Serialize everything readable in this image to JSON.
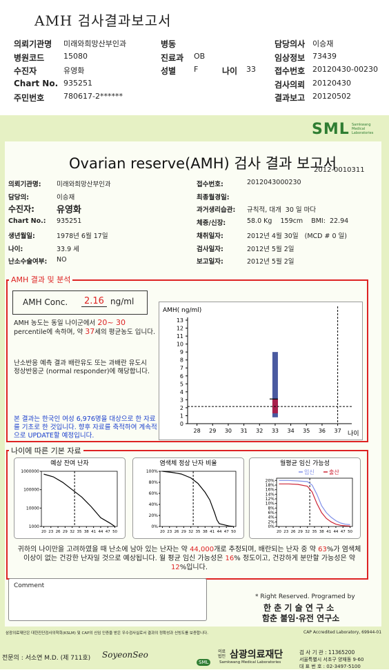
{
  "header": {
    "title": "AMH 검사결과보고서",
    "rows": [
      [
        {
          "label": "의뢰기관명",
          "value": "미래와희망산부인과"
        },
        {
          "label": "병동"
        },
        null,
        {
          "label": "담당의사",
          "value": "이승재"
        }
      ],
      [
        {
          "label": "병원코드",
          "value": "15080"
        },
        {
          "label": "진료과",
          "value": "OB"
        },
        null,
        {
          "label": "임상정보",
          "value": "73439"
        }
      ],
      [
        {
          "label": "수진자",
          "value": "유영화"
        },
        {
          "label": "성별",
          "value": "F"
        },
        {
          "label": "나이",
          "value": "33"
        },
        {
          "label": "접수번호",
          "value": "20120430-00230"
        }
      ],
      [
        {
          "label": "Chart No.",
          "value": "935251"
        },
        null,
        null,
        {
          "label": "검사의뢰",
          "value": "20120430"
        }
      ],
      [
        {
          "label": "주민번호",
          "value": "780617-2******"
        },
        null,
        null,
        {
          "label": "결과보고",
          "value": "20120502"
        }
      ]
    ]
  },
  "report": {
    "logo": "SML",
    "logo_sub": "Samkwang Medical Laboratories",
    "title": "Ovarian reserve(AMH) 검사 결과 보고서",
    "number": "2012-0010311",
    "left": [
      {
        "label": "의뢰기관명:",
        "value": "미래와희망산부인과"
      },
      {
        "label": "담당의:",
        "value": "이승재"
      },
      {
        "label": "수진자:",
        "value": "유영화"
      },
      {
        "label": "Chart No.:",
        "value": "935251"
      },
      {
        "label": "생년월일:",
        "value": "1978년 6월 17일"
      },
      {
        "label": "나이:",
        "value": "33.9 세"
      },
      {
        "label": "난소수술여부:",
        "value": "NO"
      }
    ],
    "right": [
      {
        "label": "접수번호:",
        "value": "2012043000230"
      },
      {
        "label": "최종월경일:"
      },
      {
        "label": "과거생리습관:",
        "value": "규칙적, 대개  30 일 마다"
      },
      {
        "label": "체중/신장:",
        "value": "58.0 Kg    159cm    BMI:  22.94"
      },
      {
        "label": "채취일자:",
        "value": "2012년 4월 30일   (MCD # 0 일)"
      },
      {
        "label": "검사일자:",
        "value": "2012년 5월 2일"
      },
      {
        "label": "보고일자:",
        "value": "2012년 5월 2일"
      }
    ]
  },
  "amh": {
    "heading": "AMH 결과 및 분석",
    "label": "AMH Conc.",
    "value": "2.16",
    "unit": "ng/ml",
    "text1": [
      "AMH 농도는 동일 나이군에서 ",
      "20~ 30",
      " percentile에 속하며, 약 ",
      "37",
      "세의 평균농도 입니다."
    ],
    "text2": "난소반응 예측 결과 배란유도 또는 과배란 유도시 정상반응군 (normal responder)에 해당합니다.",
    "text3": "본 결과는 한국인 여성 6,976명을 대상으로 한 자료를 기초로 한 것입니다. 향후 자료를 축적하여 계속적으로 UPDATE할 예정입니다."
  },
  "amh_chart": {
    "type": "range",
    "y_label": "AMH( ng/ml)",
    "x_label": "나이",
    "xlim": [
      27.4,
      37.9
    ],
    "xticks": [
      28,
      29,
      30,
      31,
      32,
      33,
      34,
      35,
      36,
      37
    ],
    "ylim": [
      0,
      13
    ],
    "yticks": [
      0,
      1,
      2,
      3,
      4,
      5,
      6,
      7,
      8,
      9,
      10,
      11,
      12,
      13
    ],
    "age": 33,
    "range": [
      0.8,
      9.0
    ],
    "box": [
      1.3,
      3.1
    ],
    "value": 2.16,
    "marker_x": 37
  },
  "basic": {
    "heading": "나이에 따른 기본 자료",
    "charts": [
      {
        "type": "line",
        "title": "예상 잔여 난자",
        "log_y": true,
        "xlim": [
          19,
          51
        ],
        "xticks": [
          20,
          23,
          26,
          29,
          32,
          35,
          38,
          41,
          44,
          47,
          50
        ],
        "ylim": [
          1000,
          1000000
        ],
        "yticks": [
          1000,
          10000,
          100000,
          1000000
        ],
        "marker_x": 33,
        "series": [
          {
            "color": "#000000",
            "x": [
              20,
              24,
              28,
              32,
              36,
              40,
              44,
              48,
              50
            ],
            "values": [
              700000,
              500000,
              250000,
              100000,
              40000,
              12000,
              3000,
              1500,
              1000
            ]
          }
        ]
      },
      {
        "type": "line",
        "title": "염색체 정상 난자 비율",
        "xlim": [
          19,
          51
        ],
        "xticks": [
          20,
          23,
          26,
          29,
          32,
          35,
          38,
          41,
          44,
          47,
          50
        ],
        "ylim": [
          0,
          100
        ],
        "yticks": [
          {
            "value": 0,
            "label": "0%"
          },
          {
            "value": 20,
            "label": "20%"
          },
          {
            "value": 40,
            "label": "40%"
          },
          {
            "value": 60,
            "label": "60%"
          },
          {
            "value": 80,
            "label": "80%"
          },
          {
            "value": 100,
            "label": "100%"
          }
        ],
        "marker_x": 33,
        "series": [
          {
            "color": "#000000",
            "x": [
              20,
              24,
              28,
              32,
              35,
              38,
              40,
              42,
              43,
              44,
              46,
              48,
              50
            ],
            "values": [
              100,
              98,
              95,
              88,
              78,
              62,
              48,
              25,
              12,
              5,
              3,
              1,
              0
            ]
          }
        ]
      },
      {
        "type": "line",
        "title": "월평균 임신 가능성",
        "xlim": [
          19,
          51
        ],
        "xticks": [
          20,
          23,
          26,
          29,
          32,
          35,
          38,
          41,
          44,
          47,
          50
        ],
        "ylim": [
          0,
          21
        ],
        "yticks": [
          {
            "value": 0,
            "label": "0%"
          },
          {
            "value": 2,
            "label": "2%"
          },
          {
            "value": 4,
            "label": "4%"
          },
          {
            "value": 6,
            "label": "6%"
          },
          {
            "value": 8,
            "label": "8%"
          },
          {
            "value": 10,
            "label": "10%"
          },
          {
            "value": 12,
            "label": "12%"
          },
          {
            "value": 14,
            "label": "14%"
          },
          {
            "value": 16,
            "label": "16%"
          },
          {
            "value": 18,
            "label": "18%"
          },
          {
            "value": 20,
            "label": "20%"
          }
        ],
        "marker_x": 33,
        "series": [
          {
            "name": "임신",
            "color": "#7f8fe8",
            "x": [
              20,
              24,
              28,
              32,
              34,
              36,
              38,
              40,
              42,
              44,
              46,
              48,
              50
            ],
            "values": [
              20,
              20,
              19.8,
              19.5,
              18,
              14,
              9,
              6,
              4,
              2.5,
              1.5,
              1,
              0.8
            ]
          },
          {
            "name": "출산",
            "color": "#cc2233",
            "x": [
              20,
              24,
              28,
              32,
              34,
              36,
              38,
              40,
              42,
              44,
              46,
              48,
              50
            ],
            "values": [
              18.5,
              18.5,
              18.3,
              17.5,
              15,
              10,
              6,
              3.5,
              2,
              1,
              0.5,
              0.3,
              0.2
            ]
          }
        ]
      }
    ]
  },
  "summary": [
    "귀하의 나이만을 고려하였을 때 난소에 남아 있는 난자는 약 ",
    "44,000",
    "개로 추정되며, 배란되는 난자 중 약 ",
    "63",
    "%가 염색체이상이 없는 건강한 난자일 것으로 예상됩니다. 월 평균 임신 가능성은 ",
    "16",
    "% 정도이고, 건강하게 분만할 가능성은 약 ",
    "12",
    "%입니다."
  ],
  "comment": "Comment",
  "credits": [
    "* Right Reserved. Programed by",
    "한 춘 기 술 연 구 소",
    "함춘 불임·유전 연구소"
  ],
  "footer": {
    "note": "삼광의료재단은 대한진단검사의학회(KSLM) 및 CAP의 신임 인증을 받은 우수검사실로서 결과의 정확성과 신빙도를 보증합니다.",
    "cap": "CAP Accredited Laboratory, 69944-01",
    "doctor": "전문의 : 서소연 M.D. (제 711호)",
    "signature": "SoyeonSeo",
    "logo": "SML",
    "org_prefix": "의료법인",
    "org": "삼광의료재단",
    "org_en": "Samkwang Medical Laboratories",
    "info": [
      "검 사 기 관 : 11365200",
      "서울특별시 서초구 양재동 9-60",
      "대 표 번 호 : 02-3497-5100"
    ]
  }
}
